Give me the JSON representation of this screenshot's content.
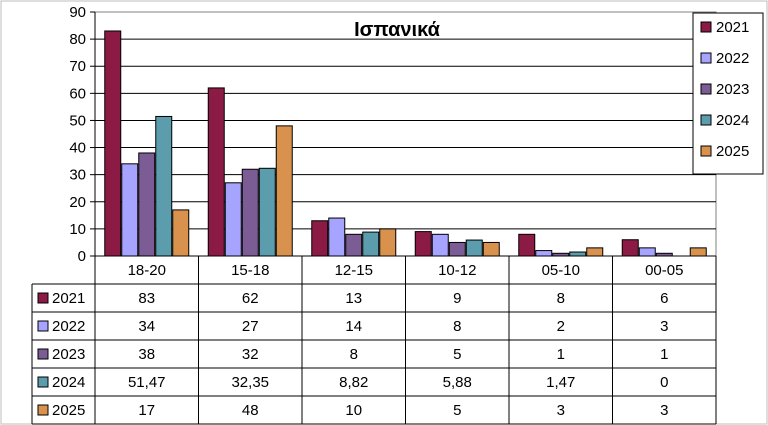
{
  "chart_data": {
    "type": "bar",
    "title": "Ισπανικά",
    "categories": [
      "18-20",
      "15-18",
      "12-15",
      "10-12",
      "05-10",
      "00-05"
    ],
    "ylim": [
      0,
      90
    ],
    "yticks": [
      0,
      10,
      20,
      30,
      40,
      50,
      60,
      70,
      80,
      90
    ],
    "grid": true,
    "legend_position": "top-right",
    "series": [
      {
        "name": "2021",
        "color": "#8B1A45",
        "values": [
          83,
          62,
          13,
          9,
          8,
          6
        ],
        "labels": [
          "83",
          "62",
          "13",
          "9",
          "8",
          "6"
        ]
      },
      {
        "name": "2022",
        "color": "#A7A4FF",
        "values": [
          34,
          27,
          14,
          8,
          2,
          3
        ],
        "labels": [
          "34",
          "27",
          "14",
          "8",
          "2",
          "3"
        ]
      },
      {
        "name": "2023",
        "color": "#7C5C94",
        "values": [
          38,
          32,
          8,
          5,
          1,
          1
        ],
        "labels": [
          "38",
          "32",
          "8",
          "5",
          "1",
          "1"
        ]
      },
      {
        "name": "2024",
        "color": "#5B9DAD",
        "values": [
          51.47,
          32.35,
          8.82,
          5.88,
          1.47,
          0
        ],
        "labels": [
          "51,47",
          "32,35",
          "8,82",
          "5,88",
          "1,47",
          "0"
        ]
      },
      {
        "name": "2025",
        "color": "#D8924E",
        "values": [
          17,
          48,
          10,
          5,
          3,
          3
        ],
        "labels": [
          "17",
          "48",
          "10",
          "5",
          "3",
          "3"
        ]
      }
    ]
  }
}
